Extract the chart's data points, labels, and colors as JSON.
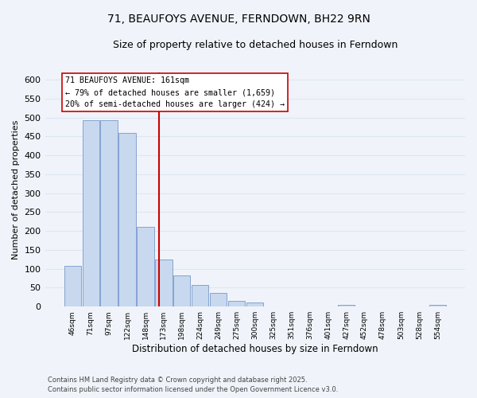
{
  "title": "71, BEAUFOYS AVENUE, FERNDOWN, BH22 9RN",
  "subtitle": "Size of property relative to detached houses in Ferndown",
  "xlabel": "Distribution of detached houses by size in Ferndown",
  "ylabel": "Number of detached properties",
  "bin_labels": [
    "46sqm",
    "71sqm",
    "97sqm",
    "122sqm",
    "148sqm",
    "173sqm",
    "198sqm",
    "224sqm",
    "249sqm",
    "275sqm",
    "300sqm",
    "325sqm",
    "351sqm",
    "376sqm",
    "401sqm",
    "427sqm",
    "452sqm",
    "478sqm",
    "503sqm",
    "528sqm",
    "554sqm"
  ],
  "bar_values": [
    107,
    493,
    493,
    460,
    210,
    125,
    83,
    58,
    37,
    15,
    12,
    0,
    0,
    0,
    0,
    5,
    0,
    0,
    0,
    0,
    5
  ],
  "bar_color": "#c8d8ee",
  "bar_edge_color": "#7799cc",
  "vline_x": 4.75,
  "vline_color": "#cc0000",
  "annotation_title": "71 BEAUFOYS AVENUE: 161sqm",
  "annotation_line1": "← 79% of detached houses are smaller (1,659)",
  "annotation_line2": "20% of semi-detached houses are larger (424) →",
  "annotation_box_facecolor": "#ffffff",
  "annotation_box_edgecolor": "#cc0000",
  "ylim": [
    0,
    620
  ],
  "yticks": [
    0,
    50,
    100,
    150,
    200,
    250,
    300,
    350,
    400,
    450,
    500,
    550,
    600
  ],
  "footer1": "Contains HM Land Registry data © Crown copyright and database right 2025.",
  "footer2": "Contains public sector information licensed under the Open Government Licence v3.0.",
  "background_color": "#f0f4fa",
  "grid_color": "#dde6f0",
  "title_fontsize": 10,
  "subtitle_fontsize": 9
}
